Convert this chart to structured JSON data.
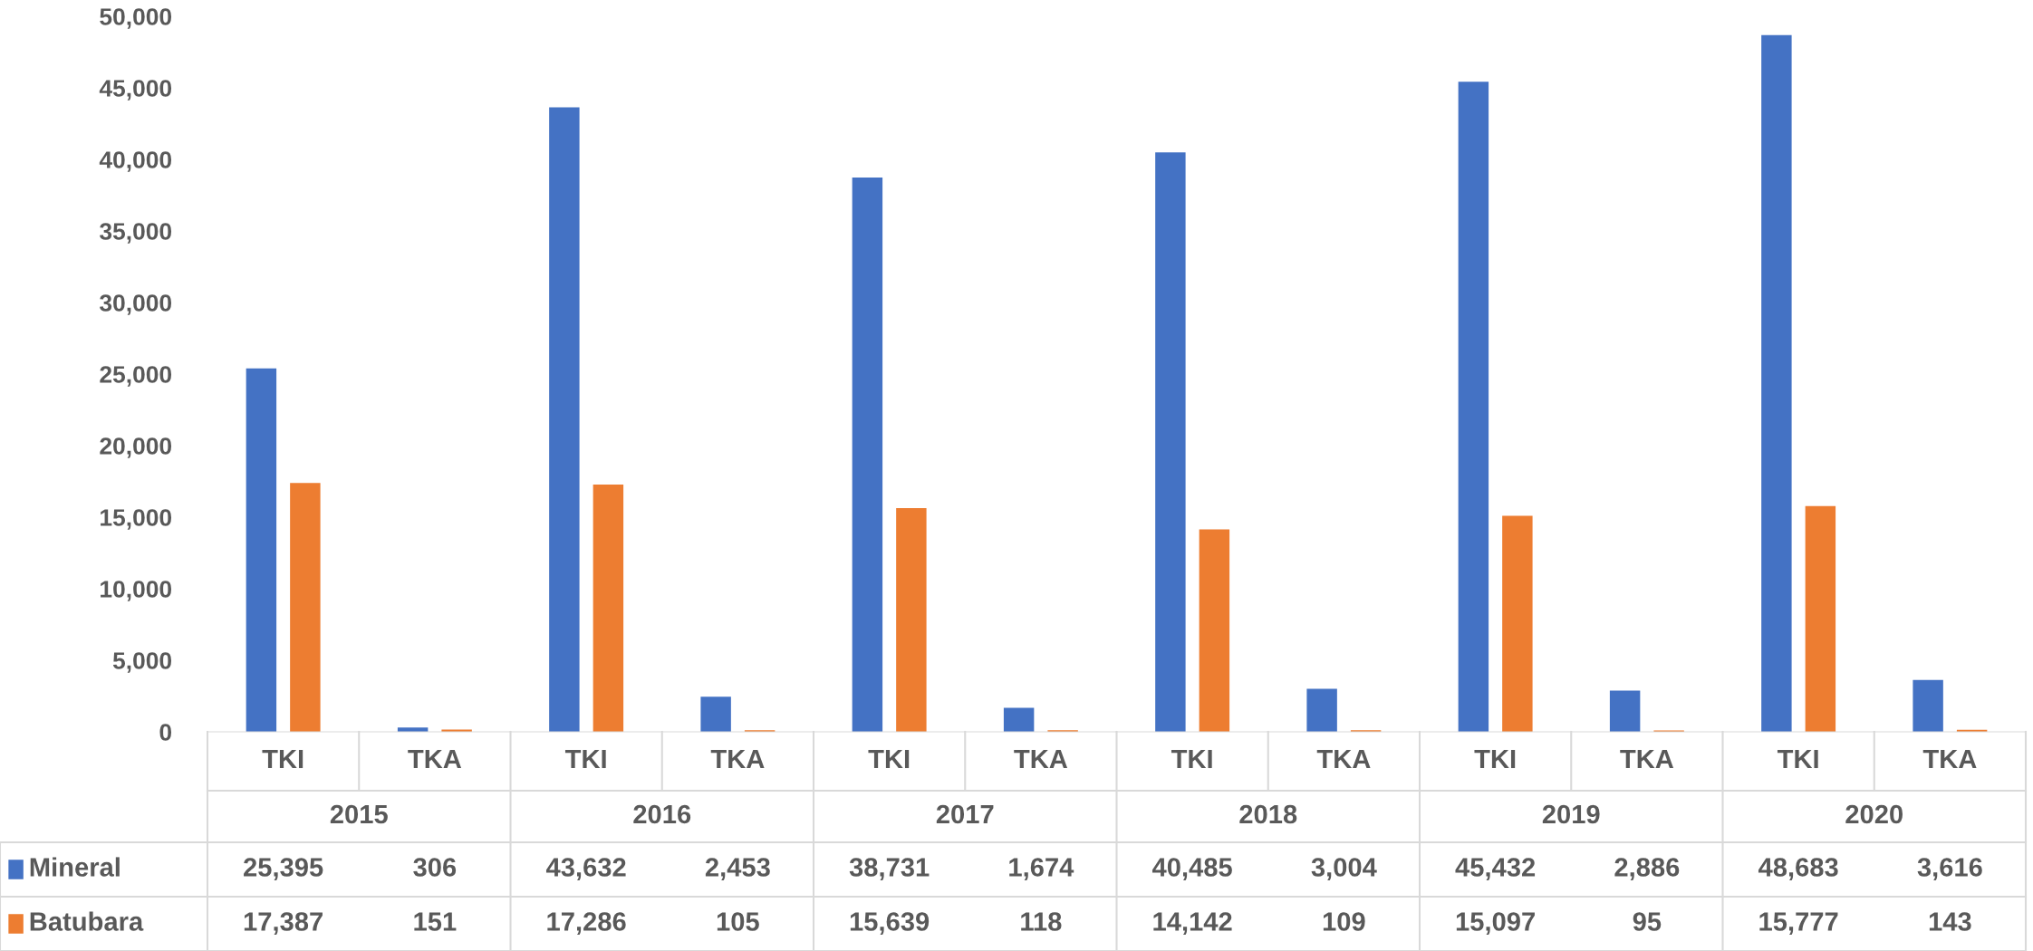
{
  "chart_data": {
    "type": "bar",
    "categories": [
      "TKI",
      "TKA",
      "TKI",
      "TKA",
      "TKI",
      "TKA",
      "TKI",
      "TKA",
      "TKI",
      "TKA",
      "TKI",
      "TKA"
    ],
    "annotations": [
      "2015",
      "2016",
      "2017",
      "2018",
      "2019",
      "2020"
    ],
    "series": [
      {
        "name": "Mineral",
        "color": "#4472c4",
        "values": [
          25395,
          306,
          43632,
          2453,
          38731,
          1674,
          40485,
          3004,
          45432,
          2886,
          48683,
          3616
        ],
        "value_labels": [
          "25,395",
          "306",
          "43,632",
          "2,453",
          "38,731",
          "1,674",
          "40,485",
          "3,004",
          "45,432",
          "2,886",
          "48,683",
          "3,616"
        ]
      },
      {
        "name": "Batubara",
        "color": "#ed7d31",
        "values": [
          17387,
          151,
          17286,
          105,
          15639,
          118,
          14142,
          109,
          15097,
          95,
          15777,
          143
        ],
        "value_labels": [
          "17,387",
          "151",
          "17,286",
          "105",
          "15,639",
          "118",
          "14,142",
          "109",
          "15,097",
          "95",
          "15,777",
          "143"
        ]
      }
    ],
    "ylim": [
      0,
      50000
    ],
    "yticks": [
      {
        "value": 0,
        "label": "0"
      },
      {
        "value": 5000,
        "label": "5,000"
      },
      {
        "value": 10000,
        "label": "10,000"
      },
      {
        "value": 15000,
        "label": "15,000"
      },
      {
        "value": 20000,
        "label": "20,000"
      },
      {
        "value": 25000,
        "label": "25,000"
      },
      {
        "value": 30000,
        "label": "30,000"
      },
      {
        "value": 35000,
        "label": "35,000"
      },
      {
        "value": 40000,
        "label": "40,000"
      },
      {
        "value": 45000,
        "label": "45,000"
      },
      {
        "value": 50000,
        "label": "50,000"
      }
    ],
    "legend": "bottom",
    "grid": false
  }
}
